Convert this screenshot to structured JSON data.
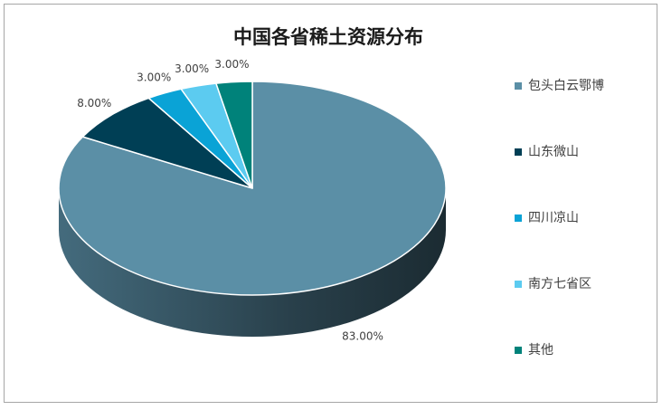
{
  "chart_data": {
    "type": "pie3d",
    "title": "中国各省稀土资源分布",
    "categories": [
      "包头白云鄂博",
      "山东微山",
      "四川凉山",
      "南方七省区",
      "其他"
    ],
    "values": [
      83,
      8,
      3,
      3,
      3
    ],
    "value_labels": [
      "83.00%",
      "8.00%",
      "3.00%",
      "3.00%",
      "3.00%"
    ],
    "colors": [
      "#5b8fa6",
      "#003f55",
      "#0aa3d6",
      "#5ccbf0",
      "#00827a"
    ],
    "legend": "right"
  }
}
